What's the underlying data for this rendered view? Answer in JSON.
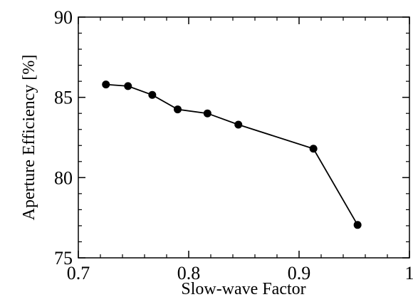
{
  "chart_data": {
    "type": "line",
    "title": "",
    "xlabel": "Slow-wave Factor",
    "ylabel": "Aperture Efficiency [%]",
    "xlim": [
      0.7,
      1.0
    ],
    "ylim": [
      75,
      90
    ],
    "x_ticks": [
      0.7,
      0.8,
      0.9,
      1.0
    ],
    "x_tick_labels": [
      "0.7",
      "0.8",
      "0.9",
      "1"
    ],
    "y_ticks": [
      75,
      80,
      85,
      90
    ],
    "y_tick_labels": [
      "75",
      "80",
      "85",
      "90"
    ],
    "grid": false,
    "legend": "none",
    "series": [
      {
        "x": [
          0.725,
          0.745,
          0.767,
          0.79,
          0.817,
          0.845,
          0.913,
          0.953
        ],
        "y": [
          85.8,
          85.7,
          85.15,
          84.25,
          84.0,
          83.3,
          81.8,
          77.05
        ],
        "color": "#000000",
        "marker": "circle"
      }
    ]
  }
}
